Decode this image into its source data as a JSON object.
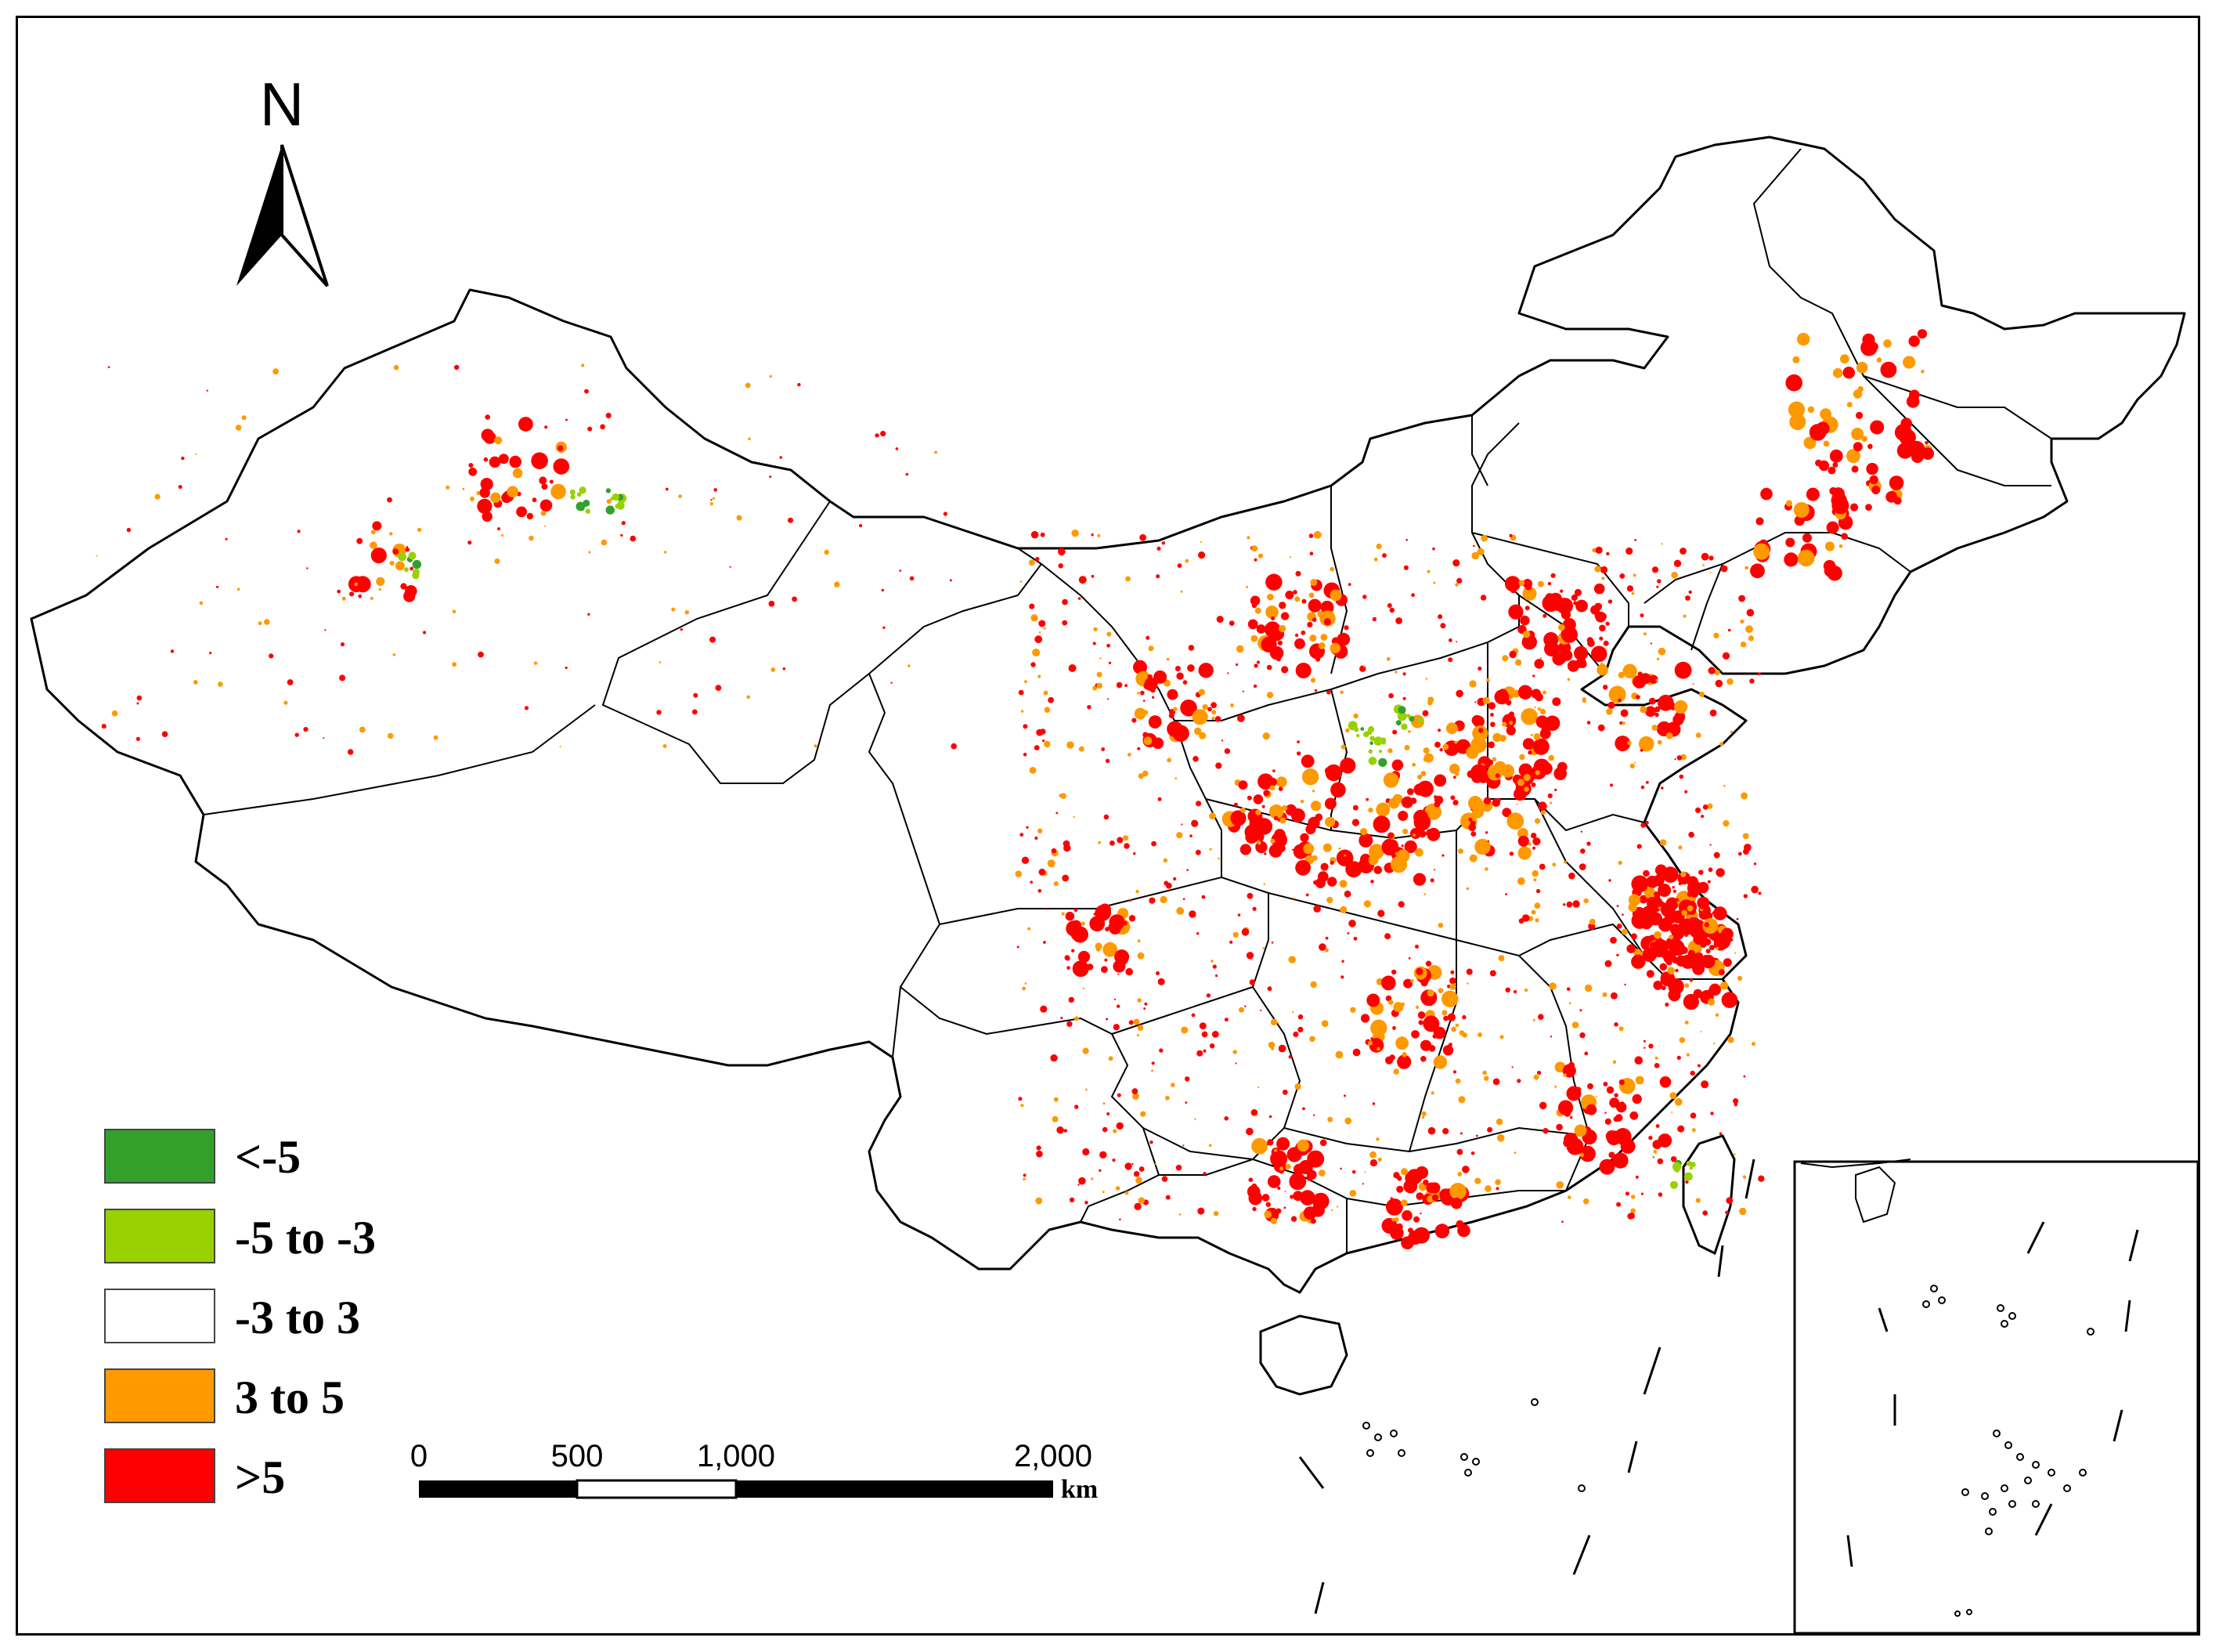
{
  "north_arrow": {
    "label": "N"
  },
  "legend": {
    "items": [
      {
        "label": "<-5",
        "color": "#33a02c"
      },
      {
        "label": "-5 to -3",
        "color": "#99d100"
      },
      {
        "label": "-3 to 3",
        "color": "#ffffff"
      },
      {
        "label": "3 to 5",
        "color": "#ff9900"
      },
      {
        "label": ">5",
        "color": "#ff0000"
      }
    ]
  },
  "scale_bar": {
    "ticks": [
      "0",
      "500",
      "1,000",
      "2,000"
    ],
    "unit": "km"
  },
  "colors": {
    "boundary": "#000000",
    "background": "#ffffff"
  }
}
